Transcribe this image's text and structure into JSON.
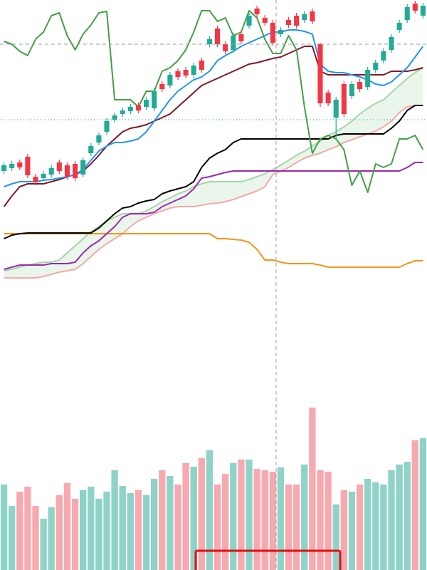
{
  "chart_data": {
    "type": "candlestick",
    "ylim": [
      0,
      800
    ],
    "up_color": "#22ab94",
    "down_color": "#f23645",
    "open": [
      560,
      564,
      572,
      580,
      552,
      550,
      555,
      572,
      568,
      570,
      555,
      585,
      600,
      615,
      632,
      640,
      644,
      652,
      650,
      648,
      682,
      680,
      700,
      702,
      695,
      715,
      738,
      760,
      738,
      730,
      752,
      764,
      788,
      775,
      768,
      752,
      772,
      778,
      772,
      784,
      738,
      670,
      635,
      682,
      665,
      685,
      678,
      702,
      715,
      730,
      758,
      772,
      795,
      778
    ],
    "high": [
      572,
      574,
      576,
      584,
      556,
      560,
      568,
      576,
      572,
      574,
      579,
      599,
      614,
      634,
      642,
      649,
      654,
      656,
      664,
      676,
      686,
      699,
      704,
      706,
      712,
      719,
      749,
      764,
      742,
      754,
      756,
      782,
      792,
      779,
      772,
      762,
      776,
      782,
      784,
      788,
      740,
      674,
      664,
      686,
      686,
      689,
      706,
      716,
      732,
      752,
      772,
      794,
      799,
      796
    ],
    "low": [
      556,
      560,
      561,
      550,
      540,
      546,
      551,
      556,
      548,
      546,
      551,
      581,
      596,
      611,
      628,
      636,
      640,
      641,
      646,
      644,
      671,
      676,
      688,
      690,
      691,
      698,
      734,
      734,
      724,
      726,
      738,
      760,
      776,
      764,
      736,
      748,
      761,
      760,
      768,
      766,
      650,
      651,
      605,
      636,
      661,
      671,
      674,
      698,
      711,
      726,
      754,
      768,
      781,
      774
    ],
    "close": [
      568,
      570,
      565,
      554,
      544,
      556,
      564,
      560,
      552,
      550,
      575,
      595,
      610,
      630,
      638,
      645,
      650,
      645,
      660,
      672,
      675,
      695,
      692,
      694,
      708,
      702,
      745,
      738,
      728,
      750,
      742,
      778,
      780,
      768,
      740,
      758,
      765,
      764,
      780,
      770,
      655,
      655,
      660,
      640,
      682,
      675,
      702,
      712,
      728,
      748,
      768,
      790,
      785,
      792
    ],
    "volume": {
      "up_color": "#8fd3c8",
      "down_color": "#f7a9b0",
      "values": [
        120,
        90,
        110,
        117,
        90,
        72,
        88,
        105,
        122,
        100,
        112,
        117,
        100,
        110,
        140,
        118,
        108,
        112,
        105,
        128,
        140,
        132,
        120,
        150,
        145,
        157,
        168,
        120,
        135,
        150,
        155,
        155,
        142,
        140,
        138,
        144,
        120,
        120,
        148,
        228,
        140,
        138,
        92,
        112,
        110,
        120,
        128,
        123,
        120,
        140,
        148,
        152,
        182,
        185
      ]
    },
    "cloud": {
      "fill": "#e8f5e9",
      "a_color": "#a5d6a7",
      "b_color": "#f4a9a8",
      "a": [
        420,
        422,
        425,
        428,
        430,
        432,
        432,
        435,
        445,
        455,
        465,
        475,
        482,
        490,
        495,
        500,
        500,
        500,
        504,
        510,
        517,
        522,
        528,
        532,
        538,
        542,
        545,
        545,
        545,
        545,
        545,
        548,
        552,
        556,
        562,
        568,
        575,
        582,
        588,
        595,
        602,
        610,
        615,
        622,
        630,
        640,
        648,
        655,
        660,
        670,
        680,
        690,
        698,
        705
      ],
      "b": [
        410,
        410,
        410,
        410,
        410,
        412,
        415,
        418,
        420,
        422,
        430,
        440,
        450,
        458,
        465,
        472,
        482,
        490,
        495,
        500,
        504,
        508,
        510,
        510,
        510,
        512,
        514,
        515,
        517,
        520,
        524,
        528,
        532,
        538,
        555,
        560,
        565,
        572,
        578,
        582,
        585,
        590,
        594,
        600,
        604,
        608,
        612,
        616,
        622,
        630,
        642,
        650,
        652,
        652
      ]
    },
    "lines": [
      {
        "color": "#f7931a",
        "values": [
          472,
          472,
          472,
          472,
          472,
          472,
          472,
          472,
          472,
          472,
          472,
          472,
          472,
          472,
          472,
          472,
          472,
          472,
          472,
          472,
          472,
          472,
          472,
          472,
          472,
          472,
          472,
          465,
          465,
          464,
          463,
          460,
          450,
          435,
          435,
          432,
          430,
          430,
          430,
          430,
          428,
          425,
          425,
          425,
          425,
          425,
          425,
          425,
          425,
          425,
          425,
          430,
          434,
          434
        ]
      },
      {
        "color": "#9c27b0",
        "values": [
          422,
          425,
          428,
          428,
          428,
          428,
          430,
          430,
          430,
          432,
          445,
          455,
          462,
          472,
          482,
          495,
          500,
          500,
          500,
          502,
          510,
          515,
          520,
          525,
          535,
          550,
          552,
          555,
          558,
          560,
          560,
          560,
          560,
          560,
          560,
          560,
          560,
          560,
          560,
          560,
          560,
          560,
          560,
          560,
          560,
          560,
          560,
          560,
          560,
          560,
          560,
          565,
          572,
          572
        ]
      },
      {
        "color": "#000000",
        "values": [
          465,
          470,
          472,
          473,
          473,
          473,
          473,
          473,
          473,
          473,
          473,
          473,
          480,
          490,
          500,
          508,
          510,
          515,
          518,
          520,
          528,
          532,
          535,
          538,
          545,
          565,
          578,
          585,
          590,
          600,
          605,
          605,
          605,
          605,
          605,
          605,
          605,
          605,
          605,
          605,
          605,
          605,
          610,
          612,
          612,
          612,
          612,
          612,
          612,
          620,
          630,
          645,
          652,
          652
        ]
      },
      {
        "color": "#801922",
        "values": [
          510,
          525,
          538,
          542,
          542,
          542,
          545,
          548,
          552,
          555,
          560,
          570,
          582,
          595,
          605,
          615,
          620,
          622,
          625,
          630,
          635,
          640,
          650,
          660,
          670,
          680,
          685,
          690,
          695,
          700,
          705,
          710,
          712,
          715,
          718,
          720,
          725,
          730,
          735,
          735,
          700,
          695,
          695,
          695,
          695,
          695,
          695,
          695,
          695,
          700,
          700,
          700,
          702,
          705
        ]
      },
      {
        "color": "#2196f3",
        "values": [
          538,
          542,
          545,
          545,
          545,
          547,
          548,
          550,
          552,
          555,
          562,
          575,
          588,
          595,
          600,
          600,
          602,
          605,
          615,
          630,
          645,
          660,
          672,
          680,
          688,
          692,
          700,
          715,
          722,
          728,
          735,
          740,
          745,
          750,
          755,
          755,
          758,
          758,
          756,
          752,
          710,
          700,
          698,
          698,
          695,
          692,
          688,
          682,
          680,
          685,
          695,
          705,
          720,
          735
        ]
      },
      {
        "color": "#43a047",
        "values": [
          742,
          738,
          728,
          722,
          745,
          755,
          778,
          782,
          750,
          730,
          752,
          765,
          782,
          784,
          660,
          660,
          660,
          650,
          672,
          672,
          700,
          705,
          715,
          730,
          755,
          785,
          785,
          770,
          775,
          750,
          755,
          785,
          775,
          745,
          725,
          725,
          750,
          730,
          650,
          585,
          605,
          610,
          605,
          590,
          540,
          560,
          530,
          570,
          565,
          570,
          605,
          605,
          610,
          590
        ]
      }
    ]
  }
}
